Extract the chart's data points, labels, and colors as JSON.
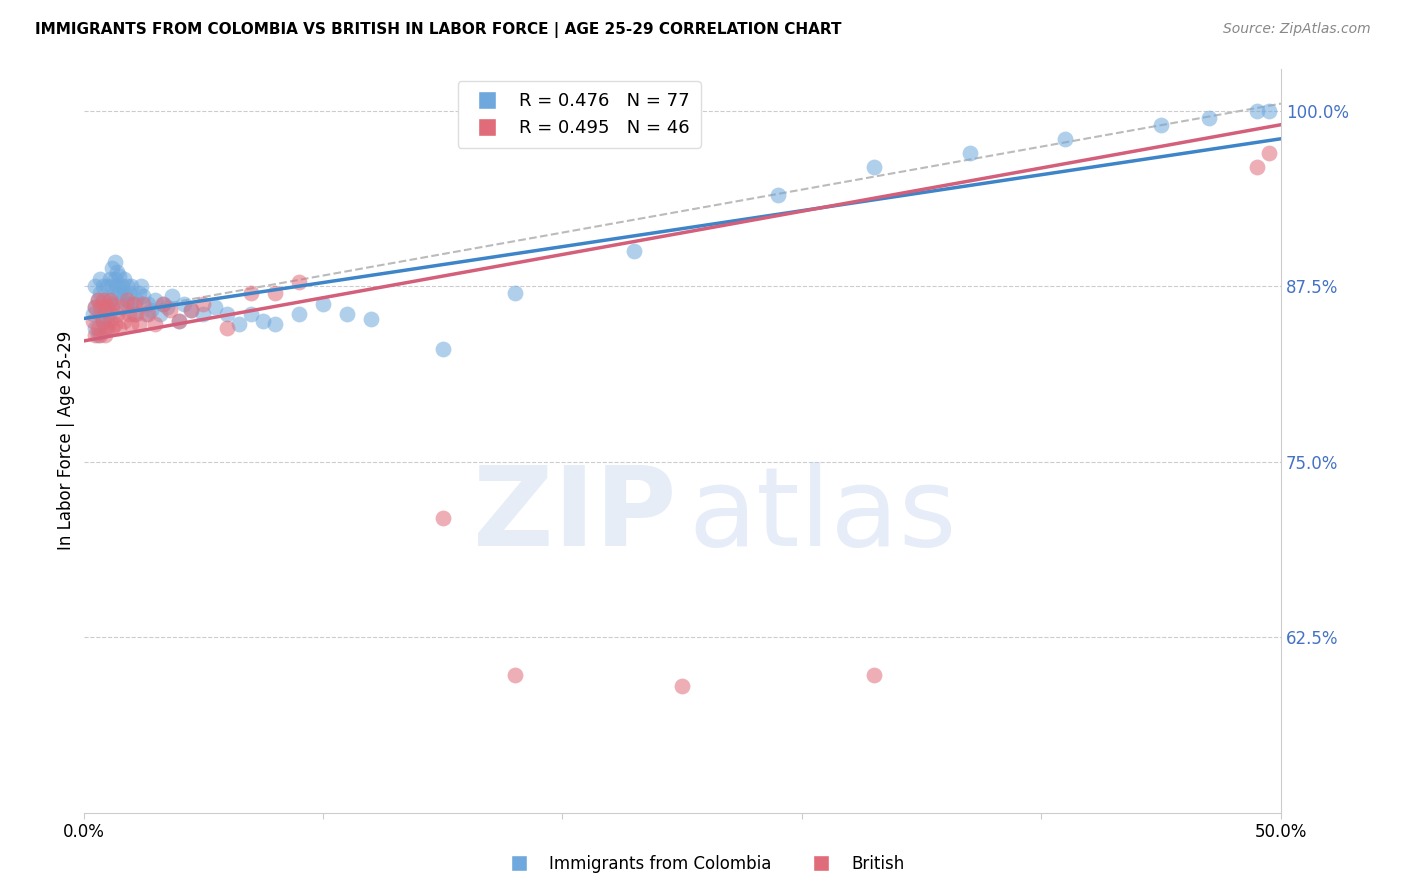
{
  "title": "IMMIGRANTS FROM COLOMBIA VS BRITISH IN LABOR FORCE | AGE 25-29 CORRELATION CHART",
  "source": "Source: ZipAtlas.com",
  "ylabel": "In Labor Force | Age 25-29",
  "xlim": [
    0.0,
    0.5
  ],
  "ylim": [
    0.5,
    1.03
  ],
  "ytick_positions": [
    0.625,
    0.75,
    0.875,
    1.0
  ],
  "ytick_labels": [
    "62.5%",
    "75.0%",
    "87.5%",
    "100.0%"
  ],
  "colombia_R": 0.476,
  "colombia_N": 77,
  "british_R": 0.495,
  "british_N": 46,
  "colombia_color": "#6fa8dc",
  "british_color": "#e06c7a",
  "colombia_line_color": "#3d85c8",
  "british_line_color": "#d45f7a",
  "ref_line_color": "#bbbbbb",
  "colombia_x": [
    0.004,
    0.005,
    0.005,
    0.005,
    0.006,
    0.006,
    0.007,
    0.007,
    0.007,
    0.008,
    0.008,
    0.008,
    0.009,
    0.009,
    0.01,
    0.01,
    0.01,
    0.011,
    0.011,
    0.011,
    0.012,
    0.012,
    0.012,
    0.013,
    0.013,
    0.013,
    0.014,
    0.014,
    0.015,
    0.015,
    0.016,
    0.016,
    0.017,
    0.017,
    0.018,
    0.018,
    0.019,
    0.02,
    0.02,
    0.021,
    0.022,
    0.023,
    0.024,
    0.025,
    0.026,
    0.027,
    0.028,
    0.03,
    0.032,
    0.033,
    0.035,
    0.037,
    0.04,
    0.042,
    0.045,
    0.05,
    0.055,
    0.06,
    0.065,
    0.07,
    0.075,
    0.08,
    0.09,
    0.1,
    0.11,
    0.12,
    0.15,
    0.18,
    0.23,
    0.29,
    0.33,
    0.37,
    0.41,
    0.45,
    0.47,
    0.49,
    0.495
  ],
  "colombia_y": [
    0.855,
    0.845,
    0.86,
    0.875,
    0.84,
    0.865,
    0.855,
    0.87,
    0.88,
    0.85,
    0.86,
    0.875,
    0.845,
    0.865,
    0.85,
    0.86,
    0.875,
    0.855,
    0.865,
    0.88,
    0.86,
    0.875,
    0.888,
    0.87,
    0.88,
    0.892,
    0.875,
    0.885,
    0.87,
    0.882,
    0.875,
    0.865,
    0.88,
    0.87,
    0.875,
    0.862,
    0.87,
    0.875,
    0.862,
    0.855,
    0.865,
    0.87,
    0.875,
    0.868,
    0.855,
    0.862,
    0.858,
    0.865,
    0.855,
    0.862,
    0.86,
    0.868,
    0.85,
    0.862,
    0.858,
    0.855,
    0.86,
    0.855,
    0.848,
    0.855,
    0.85,
    0.848,
    0.855,
    0.862,
    0.855,
    0.852,
    0.83,
    0.87,
    0.9,
    0.94,
    0.96,
    0.97,
    0.98,
    0.99,
    0.995,
    1.0,
    1.0
  ],
  "british_x": [
    0.004,
    0.005,
    0.005,
    0.006,
    0.006,
    0.007,
    0.007,
    0.008,
    0.008,
    0.009,
    0.009,
    0.01,
    0.01,
    0.011,
    0.011,
    0.012,
    0.012,
    0.013,
    0.014,
    0.015,
    0.016,
    0.017,
    0.018,
    0.019,
    0.02,
    0.021,
    0.022,
    0.023,
    0.025,
    0.027,
    0.03,
    0.033,
    0.036,
    0.04,
    0.045,
    0.05,
    0.06,
    0.07,
    0.08,
    0.09,
    0.15,
    0.18,
    0.25,
    0.33,
    0.49,
    0.495
  ],
  "british_y": [
    0.85,
    0.84,
    0.86,
    0.845,
    0.865,
    0.84,
    0.86,
    0.85,
    0.865,
    0.84,
    0.858,
    0.845,
    0.86,
    0.85,
    0.865,
    0.845,
    0.862,
    0.848,
    0.855,
    0.845,
    0.86,
    0.85,
    0.865,
    0.855,
    0.848,
    0.862,
    0.855,
    0.848,
    0.862,
    0.855,
    0.848,
    0.862,
    0.858,
    0.85,
    0.858,
    0.862,
    0.845,
    0.87,
    0.87,
    0.878,
    0.71,
    0.598,
    0.59,
    0.598,
    0.96,
    0.97
  ],
  "colombia_line_x": [
    0.0,
    0.5
  ],
  "colombia_line_y": [
    0.852,
    0.98
  ],
  "british_line_x": [
    0.0,
    0.5
  ],
  "british_line_y": [
    0.836,
    0.99
  ],
  "ref_line_x": [
    0.0,
    0.5
  ],
  "ref_line_y": [
    0.852,
    1.005
  ]
}
